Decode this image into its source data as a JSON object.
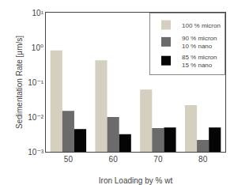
{
  "chart_data": {
    "type": "bar",
    "categories": [
      50,
      60,
      70,
      80
    ],
    "series": [
      {
        "name": "100 % micron",
        "color": "#d4cfbe",
        "values": [
          0.82,
          0.43,
          0.062,
          0.022
        ]
      },
      {
        "name": "90 % micron\n10 % nano",
        "color": "#6b6b6b",
        "values": [
          0.015,
          0.01,
          0.0048,
          0.0022
        ]
      },
      {
        "name": "85 % micron\n15 % nano",
        "color": "#050505",
        "values": [
          0.0045,
          0.0032,
          0.005,
          0.005
        ]
      }
    ],
    "xlabel": "Iron Loading by % wt",
    "ylabel": "Sedimentation Rate [μm/s]",
    "log": "y",
    "ylim": [
      0.001,
      10
    ],
    "yticks": [
      {
        "value": 0.001,
        "label": "10⁻³"
      },
      {
        "value": 0.01,
        "label": "10⁻²"
      },
      {
        "value": 0.1,
        "label": "10⁻¹"
      },
      {
        "value": 1.0,
        "label": "10⁰"
      },
      {
        "value": 10.0,
        "label": "10¹"
      }
    ],
    "grid": false,
    "legend": "upper right"
  }
}
